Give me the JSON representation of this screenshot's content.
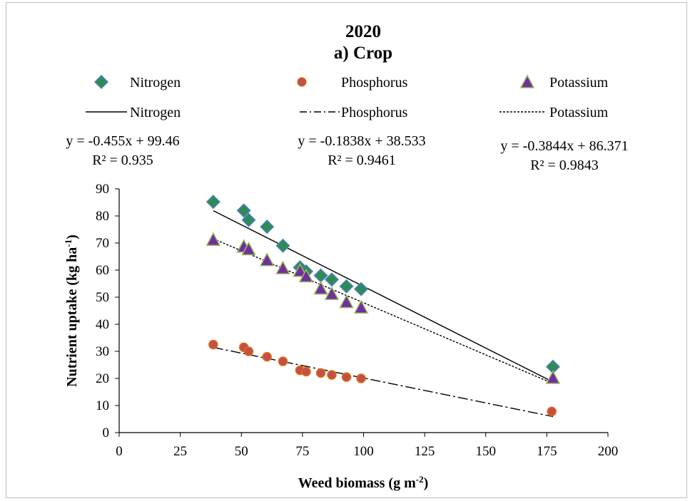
{
  "chart_data": {
    "type": "scatter",
    "title": "2020",
    "subtitle": "a) Crop",
    "xlabel": "Weed biomass (g m",
    "xlabel_sup": "-2",
    "xlabel_suffix": ")",
    "ylabel": "Nutrient uptake (kg ha",
    "ylabel_sup": "-1",
    "ylabel_suffix": ")",
    "xlim": [
      0,
      200
    ],
    "ylim": [
      0,
      90
    ],
    "x_ticks": [
      0,
      25,
      50,
      75,
      100,
      125,
      150,
      175,
      200
    ],
    "y_ticks": [
      0,
      10,
      20,
      30,
      40,
      50,
      60,
      70,
      80,
      90
    ],
    "grid": false,
    "legend_position": "top",
    "series": [
      {
        "name": "Nitrogen",
        "marker": "diamond",
        "color": "#2e8b57",
        "edge_color": "#4f81bd",
        "points": [
          [
            38.5,
            85.2
          ],
          [
            51,
            82
          ],
          [
            53,
            78.5
          ],
          [
            60.5,
            76
          ],
          [
            67,
            69
          ],
          [
            74,
            61
          ],
          [
            76.5,
            59.5
          ],
          [
            82.5,
            58
          ],
          [
            87,
            56.5
          ],
          [
            93,
            54
          ],
          [
            99,
            53
          ],
          [
            177.5,
            24.3
          ]
        ]
      },
      {
        "name": "Phosphorus",
        "marker": "circle",
        "color": "#c0504d",
        "edge_color": "#e46c0a",
        "points": [
          [
            38.5,
            32.5
          ],
          [
            51,
            31.5
          ],
          [
            53,
            30
          ],
          [
            60.5,
            28
          ],
          [
            67,
            26.3
          ],
          [
            74,
            23
          ],
          [
            76.5,
            22.5
          ],
          [
            82.5,
            22
          ],
          [
            87,
            21.3
          ],
          [
            93,
            20.5
          ],
          [
            99,
            20
          ],
          [
            177,
            7.8
          ]
        ]
      },
      {
        "name": "Potassium",
        "marker": "triangle",
        "color": "#7030a0",
        "edge_color": "#9bbb59",
        "points": [
          [
            38.5,
            71
          ],
          [
            51,
            68.5
          ],
          [
            53,
            67.5
          ],
          [
            60.5,
            63.5
          ],
          [
            67,
            60.5
          ],
          [
            74,
            59.5
          ],
          [
            76.5,
            57.5
          ],
          [
            82.5,
            53
          ],
          [
            87,
            51
          ],
          [
            93,
            48
          ],
          [
            99,
            46
          ],
          [
            177.5,
            20
          ]
        ]
      }
    ],
    "trendlines": [
      {
        "name": "Nitrogen",
        "style": "solid",
        "slope": -0.455,
        "intercept": 99.46,
        "x_range": [
          38.5,
          177.5
        ],
        "equation": "y = -0.455x + 99.46",
        "r2": "R² = 0.935"
      },
      {
        "name": "Phosphorus",
        "style": "dashdot",
        "slope": -0.1838,
        "intercept": 38.533,
        "x_range": [
          38.5,
          177.5
        ],
        "equation": "y = -0.1838x + 38.533",
        "r2": "R² = 0.9461"
      },
      {
        "name": "Potassium",
        "style": "dotted",
        "slope": -0.3844,
        "intercept": 86.371,
        "x_range": [
          38.5,
          177.5
        ],
        "equation": "y = -0.3844x + 86.371",
        "r2": "R² = 0.9843"
      }
    ]
  }
}
